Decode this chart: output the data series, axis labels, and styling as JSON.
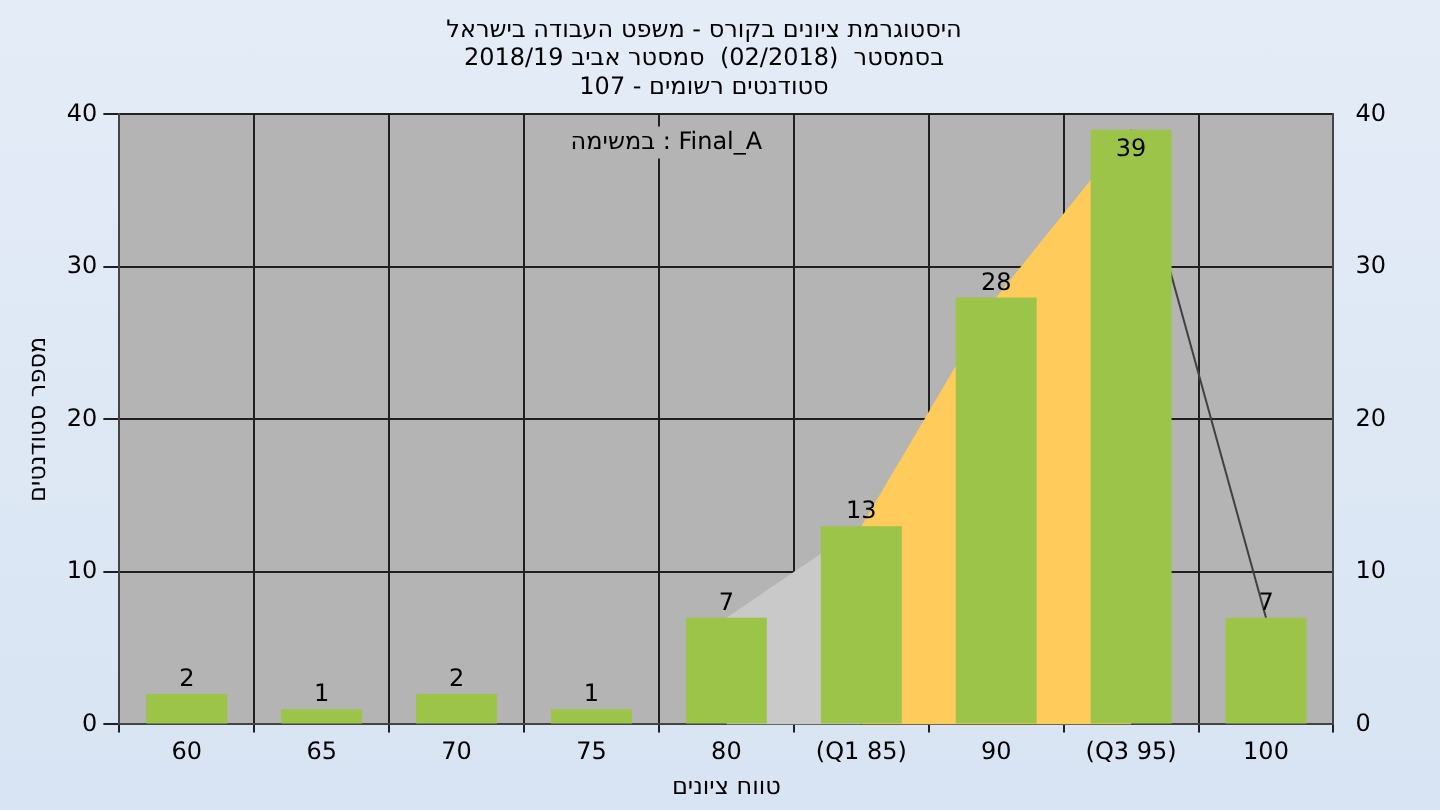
{
  "chart_data": {
    "type": "bar",
    "title": [
      "היסטוגרמת ציונים בקורס - משפט העבודה בישראל",
      "בסמסטר  (02/2018)  סמסטר אביב 2018/19",
      "סטודנטים רשומים - 107"
    ],
    "xlabel": "טווח ציונים",
    "ylabel": "מספר סטודנטים",
    "annotations": [
      "במשימה : Final_A"
    ],
    "categories": [
      "60",
      "65",
      "70",
      "75",
      "80",
      "(Q1 85)",
      "90",
      "(Q3 95)",
      "100"
    ],
    "series": [
      {
        "color": "#9cc448",
        "values": [
          2,
          1,
          2,
          1,
          7,
          13,
          28,
          39,
          7
        ],
        "value_labels": [
          "2",
          "1",
          "2",
          "1",
          "7",
          "13",
          "28",
          "39",
          "7"
        ]
      },
      {
        "type": "area",
        "color": "#c9c9c9",
        "values": [
          null,
          null,
          null,
          null,
          7,
          13,
          null,
          null,
          null
        ]
      },
      {
        "type": "area",
        "color": "#ffcc5c",
        "values": [
          null,
          null,
          null,
          null,
          null,
          13,
          28,
          39,
          null
        ]
      },
      {
        "type": "line",
        "color": "#404040",
        "values": [
          null,
          null,
          null,
          null,
          null,
          null,
          null,
          39,
          7
        ]
      }
    ],
    "ylim": [
      0,
      40
    ],
    "yticks": [
      0,
      10,
      20,
      30,
      40
    ],
    "y2lim": [
      0,
      40
    ],
    "y2ticks": [
      0,
      10,
      20,
      30,
      40
    ],
    "grid": true
  }
}
